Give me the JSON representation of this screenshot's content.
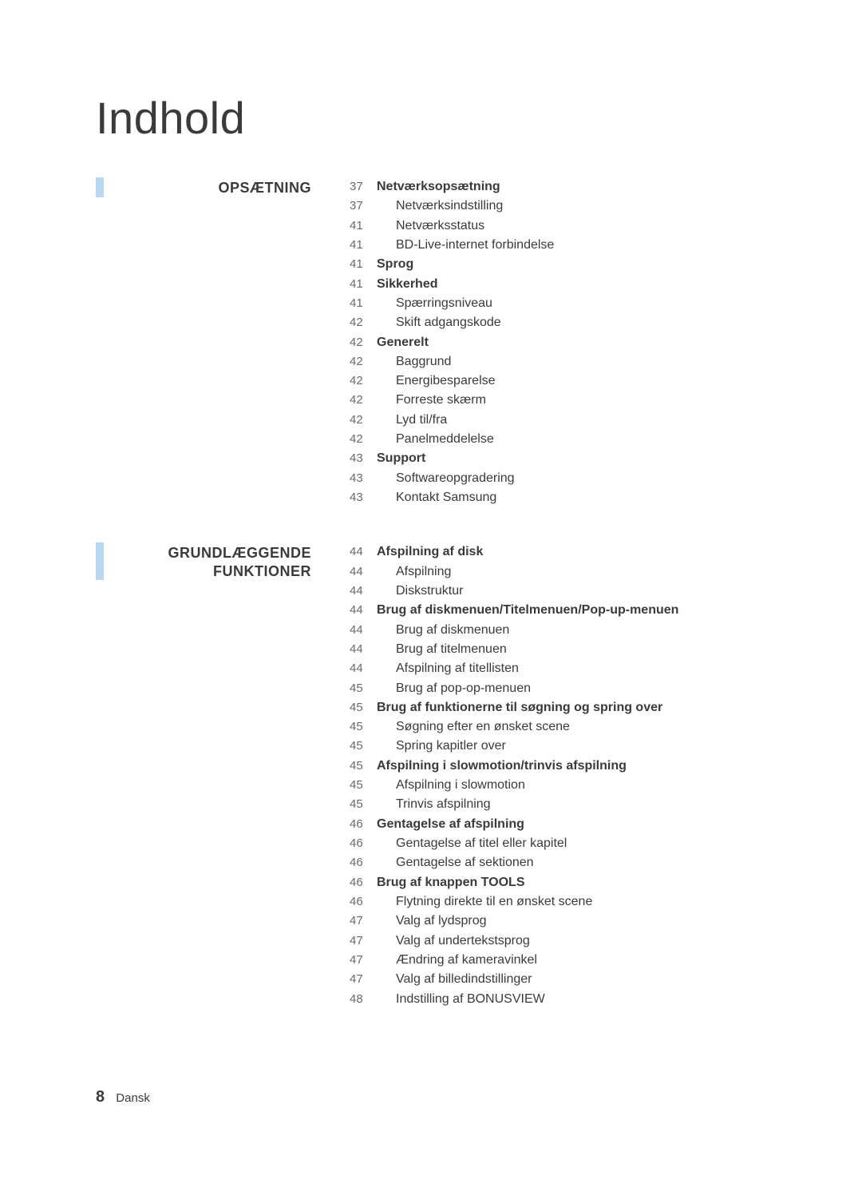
{
  "doc": {
    "title": "Indhold"
  },
  "footer": {
    "page_number": "8",
    "lang": "Dansk"
  },
  "colors": {
    "blue_bar": "#b9d6f2",
    "text": "#3a3a3a",
    "page_num": "#6a6a6a",
    "background": "#ffffff"
  },
  "typography": {
    "title_fontsize": 56,
    "title_weight": 300,
    "section_fontsize": 18,
    "section_weight": 700,
    "row_fontsize": 16,
    "row_lineheight": 1.52
  },
  "sections": [
    {
      "label": "OPSÆTNING",
      "rows": [
        {
          "page": "37",
          "text": "Netværksopsætning",
          "bold": true,
          "indent": false
        },
        {
          "page": "37",
          "text": "Netværksindstilling",
          "bold": false,
          "indent": true
        },
        {
          "page": "41",
          "text": "Netværksstatus",
          "bold": false,
          "indent": true
        },
        {
          "page": "41",
          "text": "BD-Live-internet forbindelse",
          "bold": false,
          "indent": true
        },
        {
          "page": "41",
          "text": "Sprog",
          "bold": true,
          "indent": false
        },
        {
          "page": "41",
          "text": "Sikkerhed",
          "bold": true,
          "indent": false
        },
        {
          "page": "41",
          "text": "Spærringsniveau",
          "bold": false,
          "indent": true
        },
        {
          "page": "42",
          "text": "Skift adgangskode",
          "bold": false,
          "indent": true
        },
        {
          "page": "42",
          "text": "Generelt",
          "bold": true,
          "indent": false
        },
        {
          "page": "42",
          "text": "Baggrund",
          "bold": false,
          "indent": true
        },
        {
          "page": "42",
          "text": "Energibesparelse",
          "bold": false,
          "indent": true
        },
        {
          "page": "42",
          "text": "Forreste skærm",
          "bold": false,
          "indent": true
        },
        {
          "page": "42",
          "text": "Lyd til/fra",
          "bold": false,
          "indent": true
        },
        {
          "page": "42",
          "text": "Panelmeddelelse",
          "bold": false,
          "indent": true
        },
        {
          "page": "43",
          "text": "Support",
          "bold": true,
          "indent": false
        },
        {
          "page": "43",
          "text": "Softwareopgradering",
          "bold": false,
          "indent": true
        },
        {
          "page": "43",
          "text": "Kontakt Samsung",
          "bold": false,
          "indent": true
        }
      ]
    },
    {
      "label": "GRUNDLÆGGENDE FUNKTIONER",
      "rows": [
        {
          "page": "44",
          "text": "Afspilning af disk",
          "bold": true,
          "indent": false
        },
        {
          "page": "44",
          "text": "Afspilning",
          "bold": false,
          "indent": true
        },
        {
          "page": "44",
          "text": "Diskstruktur",
          "bold": false,
          "indent": true
        },
        {
          "page": "44",
          "text": "Brug af diskmenuen/Titelmenuen/Pop-up-menuen",
          "bold": true,
          "indent": false
        },
        {
          "page": "44",
          "text": "Brug af diskmenuen",
          "bold": false,
          "indent": true
        },
        {
          "page": "44",
          "text": "Brug af titelmenuen",
          "bold": false,
          "indent": true
        },
        {
          "page": "44",
          "text": "Afspilning af titellisten",
          "bold": false,
          "indent": true
        },
        {
          "page": "45",
          "text": "Brug af pop-op-menuen",
          "bold": false,
          "indent": true
        },
        {
          "page": "45",
          "text": "Brug af funktionerne til søgning og spring over",
          "bold": true,
          "indent": false
        },
        {
          "page": "45",
          "text": "Søgning efter en ønsket scene",
          "bold": false,
          "indent": true
        },
        {
          "page": "45",
          "text": "Spring kapitler over",
          "bold": false,
          "indent": true
        },
        {
          "page": "45",
          "text": "Afspilning i slowmotion/trinvis afspilning",
          "bold": true,
          "indent": false
        },
        {
          "page": "45",
          "text": "Afspilning i slowmotion",
          "bold": false,
          "indent": true
        },
        {
          "page": "45",
          "text": "Trinvis afspilning",
          "bold": false,
          "indent": true
        },
        {
          "page": "46",
          "text": "Gentagelse af afspilning",
          "bold": true,
          "indent": false
        },
        {
          "page": "46",
          "text": "Gentagelse af titel eller kapitel",
          "bold": false,
          "indent": true
        },
        {
          "page": "46",
          "text": "Gentagelse af sektionen",
          "bold": false,
          "indent": true
        },
        {
          "page": "46",
          "text": "Brug af knappen TOOLS",
          "bold": true,
          "indent": false
        },
        {
          "page": "46",
          "text": "Flytning direkte til en ønsket scene",
          "bold": false,
          "indent": true
        },
        {
          "page": "47",
          "text": "Valg af lydsprog",
          "bold": false,
          "indent": true
        },
        {
          "page": "47",
          "text": "Valg af undertekstsprog",
          "bold": false,
          "indent": true
        },
        {
          "page": "47",
          "text": "Ændring af kameravinkel",
          "bold": false,
          "indent": true
        },
        {
          "page": "47",
          "text": "Valg af billedindstillinger",
          "bold": false,
          "indent": true
        },
        {
          "page": "48",
          "text": "Indstilling af BONUSVIEW",
          "bold": false,
          "indent": true
        }
      ]
    }
  ]
}
